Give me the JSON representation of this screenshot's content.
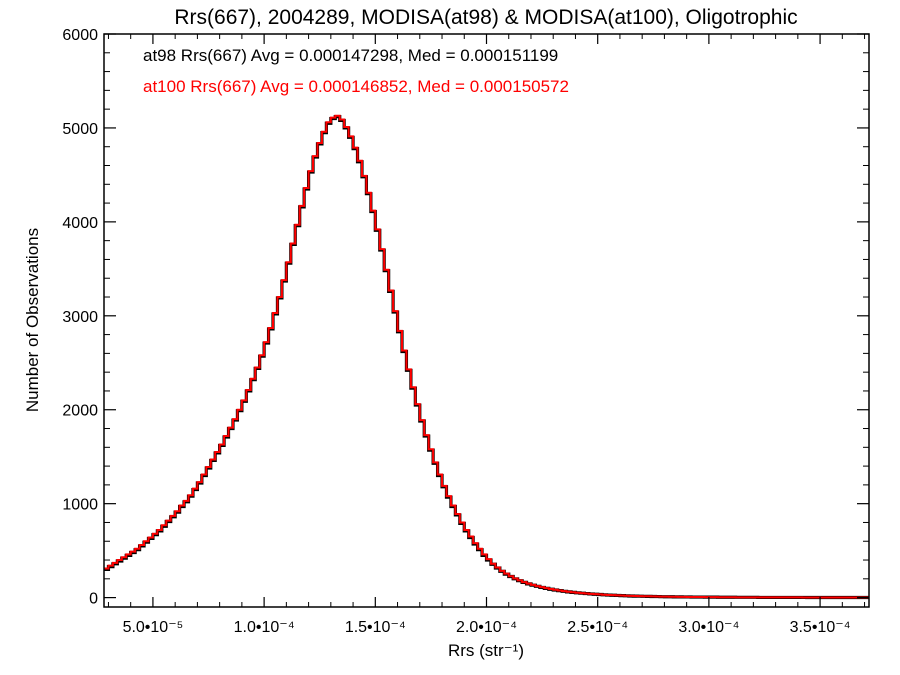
{
  "chart_data": {
    "type": "histogram",
    "title": "Rrs(667), 2004289, MODISA(at98) & MODISA(at100), Oligotrophic",
    "xlabel": "Rrs (str⁻¹)",
    "ylabel": "Number of Observations",
    "xlim": [
      2.8e-05,
      0.000372
    ],
    "ylim": [
      -100,
      6000
    ],
    "x_ticks": [
      {
        "value": 5e-05,
        "label": "5.0•10⁻⁵"
      },
      {
        "value": 0.0001,
        "label": "1.0•10⁻⁴"
      },
      {
        "value": 0.00015,
        "label": "1.5•10⁻⁴"
      },
      {
        "value": 0.0002,
        "label": "2.0•10⁻⁴"
      },
      {
        "value": 0.00025,
        "label": "2.5•10⁻⁴"
      },
      {
        "value": 0.0003,
        "label": "3.0•10⁻⁴"
      },
      {
        "value": 0.00035,
        "label": "3.5•10⁻⁴"
      }
    ],
    "y_ticks": [
      {
        "value": 0,
        "label": "0"
      },
      {
        "value": 1000,
        "label": "1000"
      },
      {
        "value": 2000,
        "label": "2000"
      },
      {
        "value": 3000,
        "label": "3000"
      },
      {
        "value": 4000,
        "label": "4000"
      },
      {
        "value": 5000,
        "label": "5000"
      },
      {
        "value": 6000,
        "label": "6000"
      }
    ],
    "legend_position": "top-left",
    "grid": false,
    "series": [
      {
        "name": "at98",
        "label": "at98 Rrs(667) Avg = 0.000147298, Med = 0.000151199",
        "color": "#000000",
        "bin_start": 2.8e-05,
        "bin_width": 2e-06,
        "counts": [
          300,
          330,
          360,
          390,
          420,
          450,
          480,
          510,
          550,
          590,
          630,
          670,
          710,
          760,
          810,
          860,
          910,
          970,
          1020,
          1080,
          1150,
          1220,
          1300,
          1380,
          1460,
          1540,
          1620,
          1710,
          1800,
          1890,
          1990,
          2090,
          2200,
          2320,
          2440,
          2570,
          2710,
          2860,
          3020,
          3190,
          3370,
          3560,
          3760,
          3960,
          4160,
          4350,
          4530,
          4690,
          4830,
          4950,
          5050,
          5100,
          5120,
          5080,
          5000,
          4900,
          4780,
          4640,
          4480,
          4300,
          4110,
          3910,
          3700,
          3480,
          3260,
          3040,
          2830,
          2620,
          2420,
          2230,
          2050,
          1880,
          1720,
          1570,
          1430,
          1300,
          1180,
          1070,
          970,
          880,
          790,
          710,
          640,
          570,
          510,
          450,
          400,
          355,
          315,
          280,
          250,
          225,
          200,
          180,
          162,
          146,
          132,
          120,
          108,
          98,
          89,
          81,
          74,
          67,
          61,
          56,
          51,
          47,
          43,
          39,
          36,
          33,
          30,
          27,
          25,
          23,
          21,
          19,
          17,
          16,
          15,
          14,
          13,
          12,
          11,
          10,
          9,
          9,
          8,
          8,
          7,
          7,
          6,
          6,
          6,
          5,
          5,
          5,
          4,
          4,
          4,
          4,
          3,
          3,
          3,
          3,
          3,
          2,
          2,
          2,
          2,
          2,
          2,
          2,
          2,
          2,
          2,
          2,
          1,
          1,
          1,
          1,
          1,
          1,
          1,
          1,
          1,
          1,
          1,
          1,
          1,
          1,
          1
        ]
      },
      {
        "name": "at100",
        "label": "at100 Rrs(667) Avg = 0.000146852, Med = 0.000150572",
        "color": "#ff0000",
        "bin_start": 2.8e-05,
        "bin_width": 2e-06,
        "counts": [
          310,
          340,
          370,
          400,
          430,
          460,
          490,
          520,
          560,
          600,
          640,
          680,
          720,
          770,
          820,
          870,
          920,
          980,
          1030,
          1090,
          1160,
          1230,
          1310,
          1390,
          1470,
          1550,
          1630,
          1720,
          1810,
          1900,
          2000,
          2100,
          2210,
          2330,
          2450,
          2580,
          2720,
          2870,
          3030,
          3200,
          3380,
          3570,
          3770,
          3970,
          4170,
          4360,
          4540,
          4700,
          4840,
          4960,
          5060,
          5110,
          5130,
          5090,
          5010,
          4910,
          4790,
          4650,
          4490,
          4310,
          4120,
          3920,
          3710,
          3490,
          3270,
          3050,
          2840,
          2630,
          2430,
          2240,
          2060,
          1890,
          1730,
          1580,
          1440,
          1310,
          1190,
          1080,
          980,
          890,
          800,
          720,
          650,
          580,
          520,
          460,
          410,
          360,
          320,
          285,
          255,
          228,
          204,
          183,
          165,
          149,
          135,
          122,
          111,
          101,
          92,
          84,
          76,
          69,
          63,
          57,
          52,
          48,
          44,
          40,
          37,
          34,
          31,
          28,
          26,
          24,
          22,
          20,
          18,
          17,
          16,
          15,
          14,
          13,
          12,
          11,
          10,
          9,
          9,
          8,
          8,
          7,
          7,
          6,
          6,
          5,
          5,
          5,
          4,
          4,
          4,
          4,
          3,
          3,
          3,
          3,
          2,
          2,
          2,
          2,
          2,
          2,
          2,
          2,
          2,
          2,
          2,
          1,
          1,
          1,
          1,
          1,
          1,
          1,
          1,
          1,
          1,
          1,
          1,
          1,
          1,
          1,
          1
        ]
      }
    ]
  }
}
